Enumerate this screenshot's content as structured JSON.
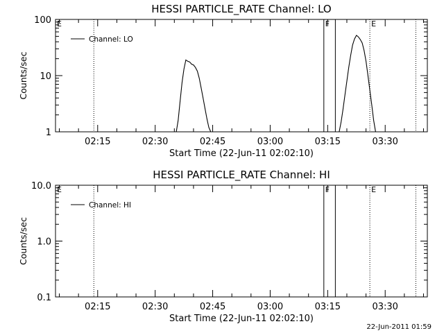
{
  "footer_timestamp": "22-Jun-2011 01:59",
  "chart_data": [
    {
      "type": "line",
      "title": "HESSI PARTICLE_RATE Channel: LO",
      "xlabel": "Start Time (22-Jun-11 02:02:10)",
      "ylabel": "Counts/sec",
      "yscale": "log",
      "ylim": [
        1,
        100
      ],
      "xlim": [
        "02:04",
        "03:41"
      ],
      "y_tick_labels": [
        "1",
        "10",
        "100"
      ],
      "y_tick_values": [
        1,
        10,
        100
      ],
      "x_tick_labels": [
        "02:15",
        "02:30",
        "02:45",
        "03:00",
        "03:15",
        "03:30"
      ],
      "x_tick_values": [
        "02:15",
        "02:30",
        "02:45",
        "03:00",
        "03:15",
        "03:30"
      ],
      "legend": {
        "position": "top-left",
        "entries": [
          "Channel: LO"
        ]
      },
      "grid": false,
      "series": [
        {
          "name": "Channel: LO",
          "segments": [
            {
              "x": [
                "02:35:30",
                "02:36:00",
                "02:36:30",
                "02:37:00",
                "02:37:30",
                "02:38:00",
                "02:38:30",
                "02:39:00",
                "02:39:30",
                "02:40:00",
                "02:40:30",
                "02:41:00",
                "02:41:30",
                "02:42:00",
                "02:42:30",
                "02:43:00",
                "02:43:30",
                "02:44:00",
                "02:44:30"
              ],
              "y": [
                1.0,
                1.6,
                3.5,
                7.5,
                13,
                19,
                18,
                17.5,
                16,
                15.5,
                14,
                12,
                9,
                6,
                4,
                2.6,
                1.7,
                1.2,
                1.0
              ]
            },
            {
              "x": [
                "03:18:00",
                "03:18:30",
                "03:19:00",
                "03:19:30",
                "03:20:00",
                "03:20:30",
                "03:21:00",
                "03:21:30",
                "03:22:00",
                "03:22:30",
                "03:23:00",
                "03:23:30",
                "03:24:00",
                "03:24:30",
                "03:25:00",
                "03:25:30",
                "03:26:00",
                "03:26:30",
                "03:27:00",
                "03:27:30"
              ],
              "y": [
                1.0,
                1.5,
                2.5,
                4.5,
                8,
                14,
                23,
                35,
                45,
                52,
                49,
                44,
                38,
                28,
                18,
                10,
                5.5,
                3,
                1.6,
                1.0
              ]
            }
          ]
        }
      ],
      "markers": [
        {
          "time": "02:04",
          "label": "E",
          "style": "none"
        },
        {
          "time": "02:14",
          "label": "",
          "style": "dotted"
        },
        {
          "time": "03:14",
          "label": "F",
          "style": "solid"
        },
        {
          "time": "03:17",
          "label": "",
          "style": "solid"
        },
        {
          "time": "03:26",
          "label": "E",
          "style": "dotted"
        },
        {
          "time": "03:38",
          "label": "",
          "style": "dotted"
        }
      ]
    },
    {
      "type": "line",
      "title": "HESSI PARTICLE_RATE Channel: HI",
      "xlabel": "Start Time (22-Jun-11 02:02:10)",
      "ylabel": "Counts/sec",
      "yscale": "log",
      "ylim": [
        0.1,
        10
      ],
      "xlim": [
        "02:04",
        "03:41"
      ],
      "y_tick_labels": [
        "0.1",
        "1.0",
        "10.0"
      ],
      "y_tick_values": [
        0.1,
        1,
        10
      ],
      "x_tick_labels": [
        "02:15",
        "02:30",
        "02:45",
        "03:00",
        "03:15",
        "03:30"
      ],
      "x_tick_values": [
        "02:15",
        "02:30",
        "02:45",
        "03:00",
        "03:15",
        "03:30"
      ],
      "legend": {
        "position": "top-left",
        "entries": [
          "Channel: HI"
        ]
      },
      "grid": false,
      "series": [
        {
          "name": "Channel: HI",
          "segments": []
        }
      ],
      "markers": [
        {
          "time": "02:04",
          "label": "E",
          "style": "none"
        },
        {
          "time": "02:14",
          "label": "",
          "style": "dotted"
        },
        {
          "time": "03:14",
          "label": "F",
          "style": "solid"
        },
        {
          "time": "03:17",
          "label": "",
          "style": "solid"
        },
        {
          "time": "03:26",
          "label": "E",
          "style": "dotted"
        },
        {
          "time": "03:38",
          "label": "",
          "style": "dotted"
        }
      ]
    }
  ]
}
